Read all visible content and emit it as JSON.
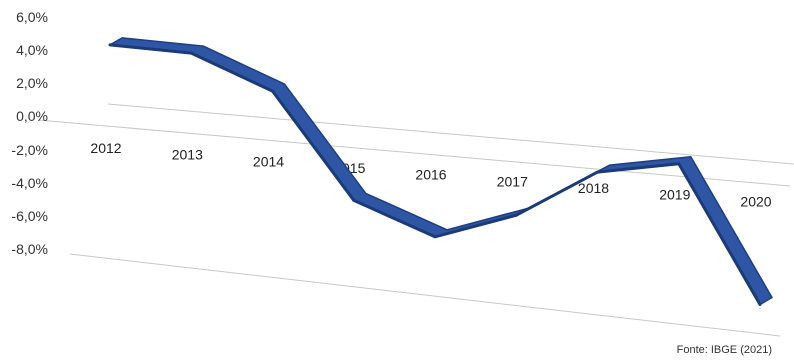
{
  "chart_data": {
    "type": "line",
    "title": "",
    "xlabel": "",
    "ylabel": "",
    "categories": [
      "2012",
      "2013",
      "2014",
      "2015",
      "2016",
      "2017",
      "2018",
      "2019",
      "2020"
    ],
    "series": [
      {
        "values": [
          4.5,
          4.2,
          2.1,
          -4.3,
          -6.3,
          -4.8,
          -2.0,
          -1.3,
          -9.6
        ],
        "color": "#2e56a5"
      }
    ],
    "yticks": [
      "6,0%",
      "4,0%",
      "2,0%",
      "0,0%",
      "-2,0%",
      "-4,0%",
      "-6,0%",
      "-8,0%"
    ],
    "ylim": [
      -10,
      6
    ],
    "grid": true,
    "perspective": "3d",
    "source": "Fonte: IBGE (2021)"
  }
}
